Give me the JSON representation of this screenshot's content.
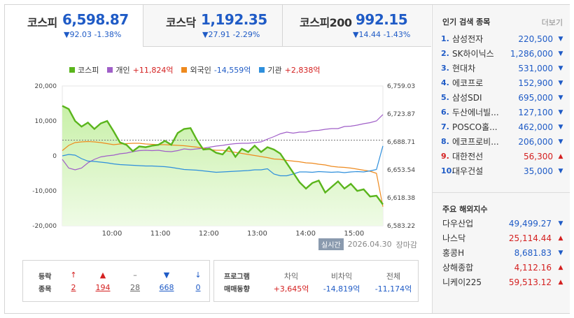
{
  "tabs": [
    {
      "name": "코스피",
      "price": "6,598.87",
      "change": "▼92.03 -1.38%",
      "active": true
    },
    {
      "name": "코스닥",
      "price": "1,192.35",
      "change": "▼27.91 -2.29%"
    },
    {
      "name": "코스피200",
      "price": "992.15",
      "change": "▼14.44 -1.43%"
    }
  ],
  "legend": {
    "kospi": "코스피",
    "individual": "개인",
    "individual_value": "+11,824억",
    "foreign": "외국인",
    "foreign_value": "-14,559억",
    "institution": "기관",
    "institution_value": "+2,838억"
  },
  "chart_data": {
    "type": "line",
    "x_ticks": [
      "10:00",
      "11:00",
      "12:00",
      "13:00",
      "14:00",
      "15:00"
    ],
    "left_ticks": [
      "20,000",
      "10,000",
      "0",
      "-10,000",
      "-20,000"
    ],
    "right_ticks": [
      "6,759.03",
      "6,723.87",
      "6,688.71",
      "6,653.54",
      "6,618.38",
      "6,583.22"
    ],
    "left_range": [
      -20000,
      20000
    ],
    "right_range": [
      6583.22,
      6759.03
    ],
    "previous_close": 6690.9,
    "colors": {
      "kospi": "#5ab51c",
      "individual": "#a05fc8",
      "foreign": "#ee8a1e",
      "institution": "#2e8fdc"
    },
    "x": [
      0,
      2,
      4,
      6,
      8,
      10,
      12,
      14,
      16,
      18,
      20,
      22,
      24,
      26,
      28,
      30,
      32,
      34,
      36,
      38,
      40,
      42,
      44,
      46,
      48,
      50,
      52,
      54,
      56,
      58,
      60,
      62,
      64,
      66,
      68,
      70,
      72,
      74,
      76,
      78,
      80,
      82,
      84,
      86,
      88,
      90,
      92,
      94,
      96,
      98,
      100
    ],
    "kospi": [
      6734,
      6730,
      6715,
      6708,
      6713,
      6705,
      6712,
      6715,
      6702,
      6688,
      6685,
      6677,
      6683,
      6682,
      6684,
      6685,
      6690,
      6685,
      6700,
      6705,
      6706,
      6691,
      6679,
      6680,
      6675,
      6673,
      6682,
      6670,
      6680,
      6676,
      6684,
      6676,
      6682,
      6679,
      6674,
      6662,
      6650,
      6638,
      6630,
      6637,
      6640,
      6625,
      6632,
      6639,
      6630,
      6636,
      6627,
      6629,
      6620,
      6621,
      6610
    ],
    "individual": [
      -1000,
      -3500,
      -4000,
      -3500,
      -2000,
      -1000,
      -300,
      0,
      200,
      600,
      800,
      1200,
      1500,
      1600,
      1500,
      1600,
      1300,
      1200,
      1500,
      2000,
      1800,
      2000,
      2200,
      2500,
      2800,
      3000,
      3300,
      3500,
      3600,
      3600,
      3800,
      4000,
      4800,
      5500,
      6300,
      6800,
      6500,
      6800,
      6800,
      7200,
      7300,
      7600,
      7800,
      7800,
      8400,
      8500,
      8800,
      9200,
      9500,
      10000,
      11824
    ],
    "foreign": [
      1500,
      3000,
      3800,
      4000,
      4100,
      4000,
      3800,
      3500,
      3200,
      3400,
      3500,
      3600,
      3600,
      3400,
      3300,
      3200,
      3200,
      3100,
      3000,
      2900,
      2700,
      2500,
      2200,
      1800,
      1600,
      1600,
      1300,
      1000,
      700,
      400,
      100,
      -200,
      -500,
      -900,
      -1000,
      -1300,
      -1500,
      -1700,
      -2000,
      -2100,
      -2400,
      -2600,
      -3000,
      -3200,
      -3300,
      -3500,
      -3800,
      -4100,
      -4400,
      -5000,
      -14559
    ],
    "institution": [
      0,
      400,
      200,
      -800,
      -1500,
      -1600,
      -1800,
      -2000,
      -2300,
      -2500,
      -2600,
      -2700,
      -2800,
      -2900,
      -2900,
      -3000,
      -3100,
      -3300,
      -3600,
      -3900,
      -4000,
      -4100,
      -4300,
      -4500,
      -4700,
      -4600,
      -4500,
      -4400,
      -4300,
      -4200,
      -4000,
      -4000,
      -3700,
      -5200,
      -5700,
      -5700,
      -5200,
      -4600,
      -4600,
      -4700,
      -4500,
      -4600,
      -4700,
      -4600,
      -4800,
      -4600,
      -4500,
      -4600,
      -4300,
      -3900,
      2838
    ]
  },
  "timestamp": {
    "badge": "실시간",
    "date": "2026.04.30",
    "status": "장마감"
  },
  "breadth": {
    "label_top": "등락",
    "label_bottom": "종목",
    "items": [
      {
        "arrow": "↑",
        "value": "2",
        "tone": "up"
      },
      {
        "arrow": "▲",
        "value": "194",
        "tone": "up"
      },
      {
        "arrow": "–",
        "value": "28",
        "tone": "flat"
      },
      {
        "arrow": "▼",
        "value": "668",
        "tone": "dn"
      },
      {
        "arrow": "↓",
        "value": "0",
        "tone": "dn"
      }
    ]
  },
  "program": {
    "label_top": "프로그램",
    "label_bottom": "매매동향",
    "cols": [
      {
        "head": "차익",
        "value": "+3,645억",
        "tone": "up"
      },
      {
        "head": "비차익",
        "value": "-14,819억",
        "tone": "dn"
      },
      {
        "head": "전체",
        "value": "-11,174억",
        "tone": "dn"
      }
    ]
  },
  "popular": {
    "title": "인기 검색 종목",
    "more": "더보기",
    "items": [
      {
        "rank": "1.",
        "name": "삼성전자",
        "price": "220,500",
        "dir": "dn"
      },
      {
        "rank": "2.",
        "name": "SK하이닉스",
        "price": "1,286,000",
        "dir": "dn"
      },
      {
        "rank": "3.",
        "name": "현대차",
        "price": "531,000",
        "dir": "dn"
      },
      {
        "rank": "4.",
        "name": "에코프로",
        "price": "152,900",
        "dir": "dn"
      },
      {
        "rank": "5.",
        "name": "삼성SDI",
        "price": "695,000",
        "dir": "dn"
      },
      {
        "rank": "6.",
        "name": "두산에너빌...",
        "price": "127,100",
        "dir": "dn"
      },
      {
        "rank": "7.",
        "name": "POSCO홀...",
        "price": "462,000",
        "dir": "dn"
      },
      {
        "rank": "8.",
        "name": "에코프로비...",
        "price": "206,000",
        "dir": "dn"
      },
      {
        "rank": "9.",
        "name": "대한전선",
        "price": "56,300",
        "dir": "up"
      },
      {
        "rank": "10.",
        "name": "대우건설",
        "price": "35,000",
        "dir": "dn"
      }
    ]
  },
  "overseas": {
    "title": "주요 해외지수",
    "items": [
      {
        "name": "다우산업",
        "value": "49,499.27",
        "dir": "dn"
      },
      {
        "name": "나스닥",
        "value": "25,114.44",
        "dir": "up"
      },
      {
        "name": "홍콩H",
        "value": "8,681.83",
        "dir": "dn"
      },
      {
        "name": "상해종합",
        "value": "4,112.16",
        "dir": "up"
      },
      {
        "name": "니케이225",
        "value": "59,513.12",
        "dir": "up"
      }
    ]
  }
}
